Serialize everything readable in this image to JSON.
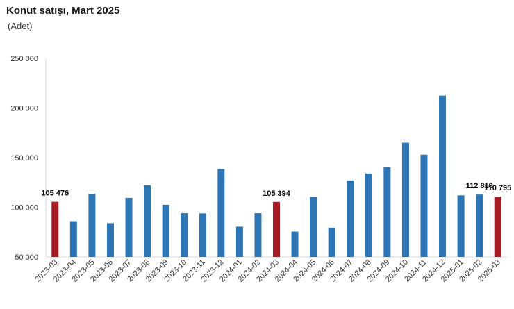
{
  "chart_data": {
    "type": "bar",
    "title": "Konut satışı, Mart 2025",
    "subtitle": "(Adet)",
    "categories": [
      "2023-03",
      "2023-04",
      "2023-05",
      "2023-06",
      "2023-07",
      "2023-08",
      "2023-09",
      "2023-10",
      "2023-11",
      "2023-12",
      "2024-01",
      "2024-02",
      "2024-03",
      "2024-04",
      "2024-05",
      "2024-06",
      "2024-07",
      "2024-08",
      "2024-09",
      "2024-10",
      "2024-11",
      "2024-12",
      "2025-01",
      "2025-02",
      "2025-03"
    ],
    "values": [
      105476,
      86000,
      113500,
      84000,
      109500,
      122000,
      102500,
      94000,
      93800,
      138500,
      80500,
      94000,
      105394,
      75500,
      110500,
      79500,
      127000,
      134000,
      140500,
      165000,
      153000,
      212500,
      112000,
      112818,
      110795
    ],
    "highlight": [
      true,
      false,
      false,
      false,
      false,
      false,
      false,
      false,
      false,
      false,
      false,
      false,
      true,
      false,
      false,
      false,
      false,
      false,
      false,
      false,
      false,
      false,
      false,
      false,
      true
    ],
    "data_labels": [
      {
        "index": 0,
        "text": "105 476"
      },
      {
        "index": 12,
        "text": "105 394"
      },
      {
        "index": 23,
        "text": "112 818"
      },
      {
        "index": 24,
        "text": "110 795"
      }
    ],
    "ylim": [
      50000,
      250000
    ],
    "yticks": [
      50000,
      100000,
      150000,
      200000,
      250000
    ],
    "ytick_labels": [
      "50 000",
      "100 000",
      "150 000",
      "200 000",
      "250 000"
    ],
    "colors": {
      "bar": "#2e75b6",
      "highlight": "#a51c24",
      "axis": "#d9d9d9"
    },
    "grid": false,
    "legend": "none"
  }
}
